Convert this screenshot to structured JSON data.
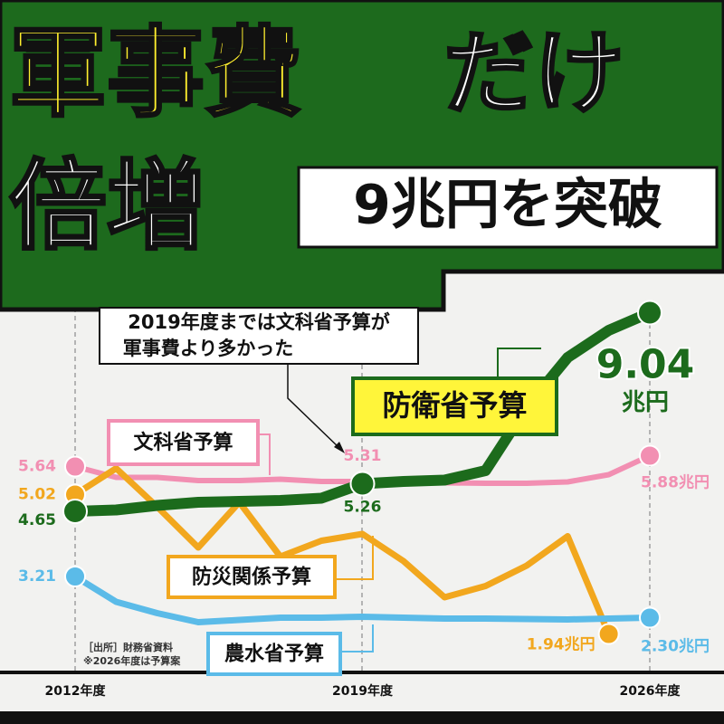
{
  "chart_data": {
    "type": "line",
    "title_parts": [
      "軍事費",
      "だけ",
      "倍増",
      "9兆円を突破"
    ],
    "annotations": [
      "2019年度までは文科省予算が",
      "軍事費より多かった",
      "［出所］財務省資料",
      "※2026年度は予算案"
    ],
    "categories": [
      "2012年度",
      null,
      null,
      null,
      null,
      null,
      null,
      "2019年度",
      null,
      null,
      null,
      null,
      null,
      null,
      "2026年度"
    ],
    "ylim": [
      0,
      10
    ],
    "series": [
      {
        "name": "文科省予算",
        "color": "#f28fb2",
        "values": [
          5.64,
          5.4,
          5.4,
          5.33,
          5.33,
          5.36,
          5.31,
          5.31,
          5.3,
          5.28,
          5.27,
          5.27,
          5.3,
          5.46,
          5.88
        ],
        "value_labels": [
          "5.64",
          null,
          null,
          null,
          null,
          null,
          null,
          "5.31",
          null,
          null,
          null,
          null,
          null,
          null,
          "5.88兆円"
        ]
      },
      {
        "name": "防衛省予算",
        "color": "#1c6b1c",
        "values": [
          4.65,
          4.68,
          4.78,
          4.85,
          4.87,
          4.89,
          4.94,
          5.26,
          5.31,
          5.34,
          5.55,
          6.95,
          8.05,
          8.65,
          9.04
        ],
        "value_labels": [
          "4.65",
          null,
          null,
          null,
          null,
          null,
          null,
          "5.26",
          null,
          null,
          null,
          null,
          null,
          null,
          "9.04"
        ],
        "unit_label": "兆円"
      },
      {
        "name": "防災関係予算",
        "color": "#f2a71e",
        "values": [
          5.02,
          5.6,
          4.75,
          3.85,
          4.85,
          3.65,
          4.0,
          4.15,
          3.55,
          2.75,
          3.0,
          3.45,
          4.1,
          1.94,
          null
        ],
        "value_labels": [
          "5.02",
          null,
          null,
          null,
          null,
          null,
          null,
          null,
          null,
          null,
          null,
          null,
          null,
          "1.94兆円",
          null
        ]
      },
      {
        "name": "農水省予算",
        "color": "#5bbbe8",
        "values": [
          3.21,
          2.65,
          2.4,
          2.2,
          2.25,
          2.3,
          2.3,
          2.32,
          2.3,
          2.28,
          2.28,
          2.27,
          2.26,
          2.28,
          2.3
        ],
        "value_labels": [
          "3.21",
          null,
          null,
          null,
          null,
          null,
          null,
          null,
          null,
          null,
          null,
          null,
          null,
          null,
          "2.30兆円"
        ]
      }
    ]
  }
}
